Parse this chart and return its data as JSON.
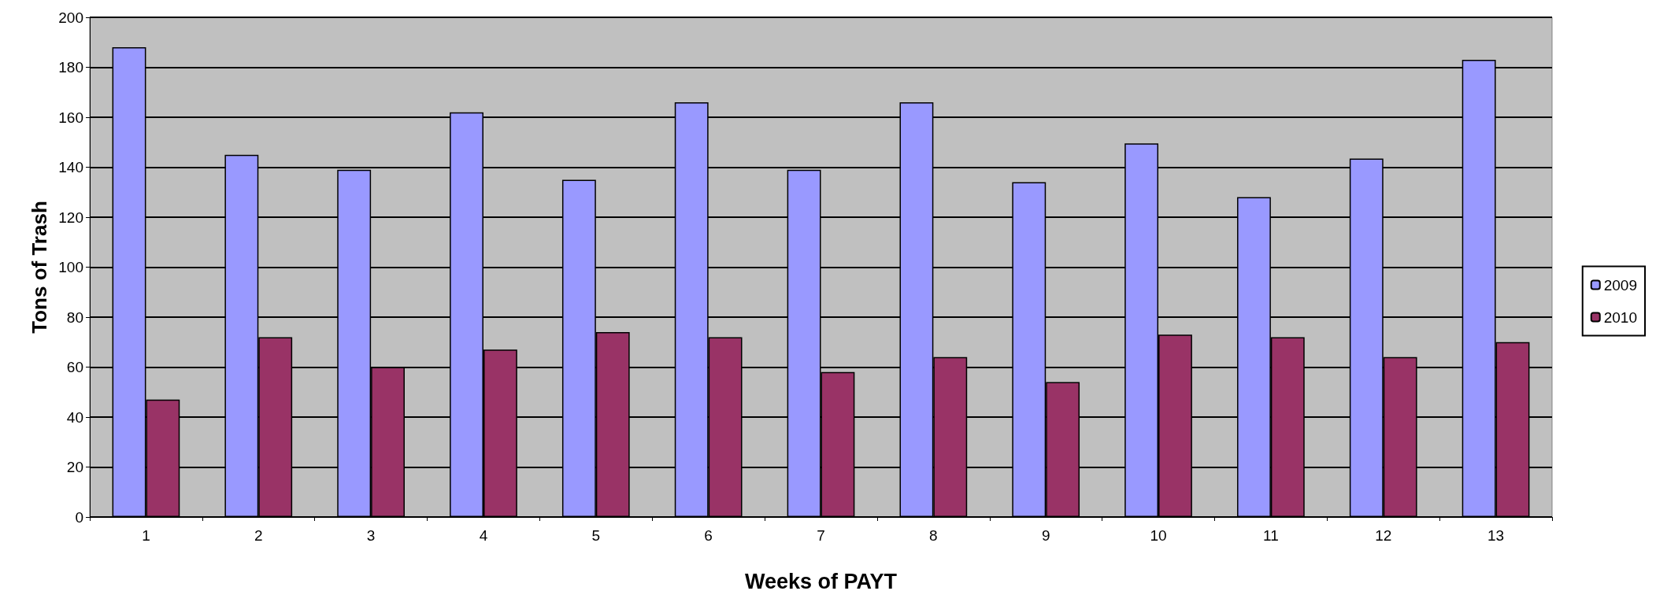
{
  "chart_data": {
    "type": "bar",
    "xlabel": "Weeks of PAYT",
    "ylabel": "Tons of Trash",
    "categories": [
      "1",
      "2",
      "3",
      "4",
      "5",
      "6",
      "7",
      "8",
      "9",
      "10",
      "11",
      "12",
      "13"
    ],
    "series": [
      {
        "name": "2009",
        "color": "#9999ff",
        "values": [
          188,
          145,
          139,
          162,
          135,
          166,
          139,
          166,
          134,
          149.5,
          128,
          143.5,
          183
        ]
      },
      {
        "name": "2010",
        "color": "#993366",
        "values": [
          47,
          72,
          60,
          67,
          74,
          72,
          58,
          64,
          54,
          73,
          72,
          64,
          70
        ]
      }
    ],
    "ylim": [
      0,
      200
    ],
    "yticks": [
      0,
      20,
      40,
      60,
      80,
      100,
      120,
      140,
      160,
      180,
      200
    ],
    "grid": "y",
    "legend": "right"
  }
}
